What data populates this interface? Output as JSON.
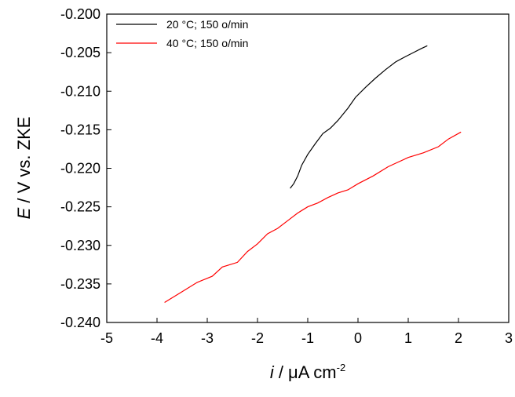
{
  "chart_data": {
    "type": "line",
    "x_axis": {
      "label_italic": "i",
      "label_rest": " / μA cm",
      "label_sup": "-2",
      "range": [
        -5,
        3
      ],
      "ticks": [
        "-5",
        "-4",
        "-3",
        "-2",
        "-1",
        "0",
        "1",
        "2",
        "3"
      ]
    },
    "y_axis": {
      "label_italic": "E",
      "label_rest": " / V vs. ZKE",
      "range": [
        -0.24,
        -0.2
      ],
      "ticks": [
        "-0.200",
        "-0.205",
        "-0.210",
        "-0.215",
        "-0.220",
        "-0.225",
        "-0.230",
        "-0.235",
        "-0.240"
      ]
    },
    "grid": false,
    "legend_position": "top-left",
    "series": [
      {
        "name": "20 °C; 150 o/min",
        "color": "#000000",
        "points": [
          [
            -1.35,
            -0.2226
          ],
          [
            -1.28,
            -0.222
          ],
          [
            -1.2,
            -0.221
          ],
          [
            -1.12,
            -0.2196
          ],
          [
            -1.0,
            -0.2182
          ],
          [
            -0.85,
            -0.2168
          ],
          [
            -0.7,
            -0.2155
          ],
          [
            -0.55,
            -0.2148
          ],
          [
            -0.4,
            -0.2138
          ],
          [
            -0.2,
            -0.2122
          ],
          [
            -0.05,
            -0.2108
          ],
          [
            0.15,
            -0.2095
          ],
          [
            0.35,
            -0.2083
          ],
          [
            0.55,
            -0.2072
          ],
          [
            0.75,
            -0.2062
          ],
          [
            0.95,
            -0.2055
          ],
          [
            1.1,
            -0.205
          ],
          [
            1.25,
            -0.2045
          ],
          [
            1.38,
            -0.2041
          ]
        ]
      },
      {
        "name": "40 °C; 150 o/min",
        "color": "#ff0000",
        "points": [
          [
            -3.85,
            -0.2374
          ],
          [
            -3.5,
            -0.236
          ],
          [
            -3.2,
            -0.2348
          ],
          [
            -2.9,
            -0.234
          ],
          [
            -2.7,
            -0.2328
          ],
          [
            -2.4,
            -0.2322
          ],
          [
            -2.2,
            -0.2308
          ],
          [
            -2.0,
            -0.2298
          ],
          [
            -1.8,
            -0.2285
          ],
          [
            -1.6,
            -0.2278
          ],
          [
            -1.4,
            -0.2268
          ],
          [
            -1.2,
            -0.2258
          ],
          [
            -1.0,
            -0.225
          ],
          [
            -0.8,
            -0.2245
          ],
          [
            -0.6,
            -0.2238
          ],
          [
            -0.4,
            -0.2232
          ],
          [
            -0.2,
            -0.2228
          ],
          [
            0.0,
            -0.222
          ],
          [
            0.3,
            -0.221
          ],
          [
            0.6,
            -0.2198
          ],
          [
            1.0,
            -0.2186
          ],
          [
            1.3,
            -0.218
          ],
          [
            1.6,
            -0.2172
          ],
          [
            1.8,
            -0.2162
          ],
          [
            2.05,
            -0.2153
          ]
        ]
      }
    ]
  }
}
